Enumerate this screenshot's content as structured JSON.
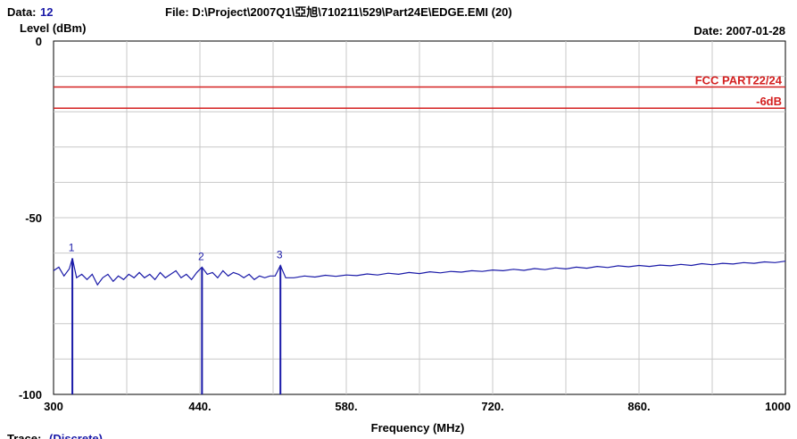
{
  "header": {
    "data_label": "Data:",
    "data_value": "12",
    "file": "File: D:\\Project\\2007Q1\\亞旭\\710211\\529\\Part24E\\EDGE.EMI  (20)",
    "date": "Date: 2007-01-28"
  },
  "footer": {
    "trace_label": "Trace:",
    "trace_value": "(Discrete)"
  },
  "chart_data": {
    "type": "line",
    "title": "",
    "xlabel": "Frequency (MHz)",
    "ylabel": "Level (dBm)",
    "xlim": [
      300,
      1000
    ],
    "ylim": [
      -100,
      0
    ],
    "x_ticks": [
      300,
      440,
      580,
      720,
      860,
      1000
    ],
    "x_tick_labels": [
      "300",
      "440.",
      "580.",
      "720.",
      "860.",
      "1000"
    ],
    "y_ticks": [
      0,
      -50,
      -100
    ],
    "y_tick_labels": [
      "0",
      "-50",
      "-100"
    ],
    "grid": true,
    "limit_lines": [
      {
        "name": "FCC PART22/24",
        "value": -13,
        "color": "#d42020"
      },
      {
        "name": "-6dB",
        "value": -19,
        "color": "#d42020"
      }
    ],
    "markers": [
      {
        "label": "1",
        "x": 318,
        "y": -61.5
      },
      {
        "label": "2",
        "x": 442,
        "y": -64
      },
      {
        "label": "3",
        "x": 517,
        "y": -63.5
      }
    ],
    "series": [
      {
        "color": "#1a1aa8",
        "x": [
          300,
          305,
          310,
          315,
          318,
          322,
          327,
          332,
          337,
          342,
          347,
          352,
          357,
          362,
          367,
          372,
          377,
          382,
          387,
          392,
          397,
          402,
          407,
          412,
          417,
          422,
          427,
          432,
          437,
          442,
          447,
          452,
          457,
          462,
          467,
          472,
          477,
          482,
          487,
          492,
          497,
          502,
          507,
          512,
          517,
          522,
          530,
          540,
          550,
          560,
          570,
          580,
          590,
          600,
          610,
          620,
          630,
          640,
          650,
          660,
          670,
          680,
          690,
          700,
          710,
          720,
          730,
          740,
          750,
          760,
          770,
          780,
          790,
          800,
          810,
          820,
          830,
          840,
          850,
          860,
          870,
          880,
          890,
          900,
          910,
          920,
          930,
          940,
          950,
          960,
          970,
          980,
          990,
          1000
        ],
        "y": [
          -65,
          -64,
          -66.5,
          -64.5,
          -61.5,
          -67,
          -66,
          -67.5,
          -66,
          -69,
          -67,
          -66,
          -68,
          -66.5,
          -67.5,
          -66,
          -67,
          -65.5,
          -67,
          -66,
          -67.5,
          -65.5,
          -67,
          -66,
          -65,
          -67,
          -66,
          -67.5,
          -65.5,
          -64,
          -66,
          -65.5,
          -67,
          -65,
          -66.5,
          -65.5,
          -66,
          -67,
          -66,
          -67.5,
          -66.5,
          -67,
          -66.5,
          -66.5,
          -63.5,
          -67,
          -67,
          -66.5,
          -66.8,
          -66.3,
          -66.6,
          -66.2,
          -66.4,
          -65.9,
          -66.2,
          -65.7,
          -66,
          -65.5,
          -65.8,
          -65.3,
          -65.6,
          -65.2,
          -65.4,
          -65,
          -65.2,
          -64.8,
          -65,
          -64.6,
          -64.9,
          -64.4,
          -64.7,
          -64.2,
          -64.5,
          -64,
          -64.3,
          -63.8,
          -64.1,
          -63.6,
          -63.9,
          -63.5,
          -63.8,
          -63.4,
          -63.6,
          -63.2,
          -63.5,
          -63,
          -63.3,
          -62.9,
          -63.1,
          -62.7,
          -62.9,
          -62.5,
          -62.7,
          -62.3
        ]
      }
    ]
  }
}
